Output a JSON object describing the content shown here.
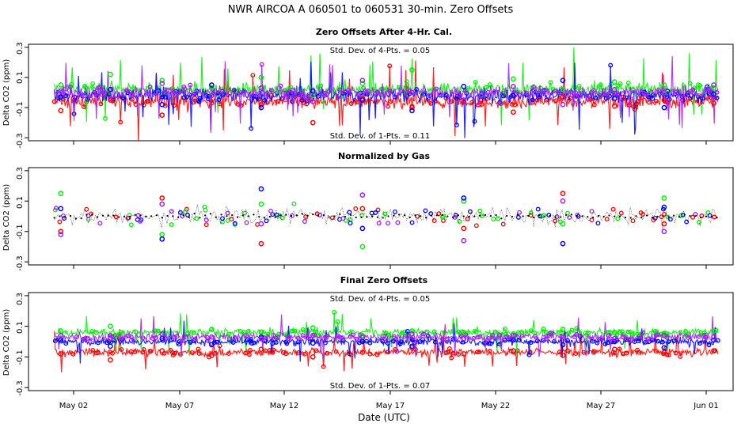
{
  "figure": {
    "title": "NWR   AIRCOA A   060501 to 060531   30-min. Zero Offsets",
    "xlabel": "Date (UTC)"
  },
  "colors": {
    "series": [
      "#ff0000",
      "#00ee00",
      "#0000ff",
      "#a020f0"
    ],
    "normalized": "#000000"
  },
  "chart_data": [
    {
      "type": "line",
      "title": "Zero Offsets After 4-Hr. Cal.",
      "ylabel": "Delta CO2 (ppm)",
      "ylim": [
        -0.32,
        0.32
      ],
      "yticks": [
        "-0.3",
        "-0.1",
        "0.1",
        "0.3"
      ],
      "xlim": [
        0.0,
        32.7
      ],
      "xticks": [
        "May 02",
        "May 07",
        "May 12",
        "May 17",
        "May 22",
        "May 27",
        "Jun 01"
      ],
      "annotations": [
        "Std. Dev. of 4-Pts. = 0.05",
        "Std. Dev. of 1-Pts. = 0.11"
      ],
      "series": [
        {
          "name": "red",
          "offset": -0.06,
          "x": [
            1.5,
            3.8,
            6.2,
            8.5,
            10.8,
            13.2,
            15.5,
            17.8,
            20.2,
            22.5,
            24.8,
            27.2,
            29.5,
            31.8
          ],
          "values": [
            -0.12,
            -0.05,
            -0.15,
            -0.02,
            -0.08,
            -0.2,
            -0.04,
            -0.1,
            -0.06,
            -0.13,
            -0.03,
            -0.09,
            -0.05,
            -0.07
          ]
        },
        {
          "name": "green",
          "offset": 0.02,
          "x": [
            1.5,
            3.8,
            6.2,
            8.5,
            10.8,
            13.2,
            15.5,
            17.8,
            20.2,
            22.5,
            24.8,
            27.2,
            29.5,
            31.8
          ],
          "values": [
            0.05,
            0.12,
            0.08,
            0.03,
            0.1,
            -0.02,
            0.06,
            0.15,
            0.04,
            0.09,
            0.02,
            0.07,
            0.05,
            0.03
          ]
        },
        {
          "name": "blue",
          "offset": -0.02,
          "x": [
            1.5,
            3.8,
            6.2,
            8.5,
            10.8,
            13.2,
            15.5,
            17.8,
            20.2,
            22.5,
            24.8,
            27.2,
            29.5,
            31.8
          ],
          "values": [
            -0.03,
            0.02,
            -0.08,
            0.05,
            -0.1,
            0.01,
            -0.05,
            -0.12,
            0.04,
            -0.02,
            0.08,
            -0.04,
            -0.1,
            -0.01
          ]
        },
        {
          "name": "purple",
          "offset": 0.0,
          "x": [
            1.5,
            3.8,
            6.2,
            8.5,
            10.8,
            13.2,
            15.5,
            17.8,
            20.2,
            22.5,
            24.8,
            27.2,
            29.5,
            31.8
          ],
          "values": [
            0.01,
            -0.04,
            0.06,
            -0.02,
            0.03,
            -0.06,
            0.08,
            0.0,
            -0.05,
            0.04,
            -0.08,
            0.02,
            0.0,
            0.05
          ]
        }
      ]
    },
    {
      "type": "scatter",
      "title": "Normalized by Gas",
      "ylabel": "Delta CO2 (ppm)",
      "ylim": [
        -0.32,
        0.32
      ],
      "yticks": [
        "-0.3",
        "-0.1",
        "0.1",
        "0.3"
      ],
      "xlim": [
        0.0,
        32.7
      ],
      "xticks": [
        "May 02",
        "May 07",
        "May 12",
        "May 17",
        "May 22",
        "May 27",
        "Jun 01"
      ],
      "annotations": [],
      "series": [
        {
          "name": "red",
          "offset": 0.0,
          "x": [
            1.5,
            6.2,
            10.8,
            15.5,
            20.2,
            24.8,
            29.5
          ],
          "values": [
            -0.1,
            0.12,
            -0.18,
            0.05,
            -0.08,
            0.15,
            -0.05
          ]
        },
        {
          "name": "green",
          "offset": 0.0,
          "x": [
            1.5,
            6.2,
            10.8,
            15.5,
            20.2,
            24.8,
            29.5
          ],
          "values": [
            0.15,
            -0.12,
            0.08,
            -0.2,
            0.1,
            -0.05,
            0.12
          ]
        },
        {
          "name": "blue",
          "offset": 0.0,
          "x": [
            1.5,
            6.2,
            10.8,
            15.5,
            20.2,
            24.8,
            29.5
          ],
          "values": [
            0.05,
            -0.15,
            0.18,
            -0.08,
            0.12,
            -0.18,
            0.06
          ]
        },
        {
          "name": "purple",
          "offset": 0.0,
          "x": [
            1.5,
            6.2,
            10.8,
            15.5,
            20.2,
            24.8,
            29.5
          ],
          "values": [
            -0.12,
            0.08,
            -0.05,
            0.14,
            -0.16,
            0.1,
            -0.1
          ]
        },
        {
          "name": "normalized",
          "offset": 0.0,
          "x": [
            1.5,
            6.2,
            10.8,
            15.5,
            20.2,
            24.8,
            29.5
          ],
          "values": [
            0.0,
            0.0,
            0.0,
            0.0,
            0.0,
            0.0,
            0.0
          ]
        }
      ]
    },
    {
      "type": "line",
      "title": "Final Zero Offsets",
      "ylabel": "Delta CO2 (ppm)",
      "ylim": [
        -0.32,
        0.32
      ],
      "yticks": [
        "-0.3",
        "-0.1",
        "0.1",
        "0.3"
      ],
      "xlim": [
        0.0,
        32.7
      ],
      "xticks": [
        "May 02",
        "May 07",
        "May 12",
        "May 17",
        "May 22",
        "May 27",
        "Jun 01"
      ],
      "annotations": [
        "Std. Dev. of 4-Pts. = 0.05",
        "Std. Dev. of 1-Pts. = 0.07"
      ],
      "series": [
        {
          "name": "red",
          "offset": -0.07,
          "x": [
            1.5,
            3.8,
            6.2,
            8.5,
            10.8,
            13.2,
            15.5,
            17.8,
            20.2,
            22.5,
            24.8,
            27.2,
            29.5,
            31.8
          ],
          "values": [
            -0.08,
            -0.12,
            -0.06,
            -0.09,
            -0.05,
            -0.1,
            -0.07,
            -0.04,
            -0.08,
            -0.06,
            -0.09,
            -0.05,
            -0.07,
            -0.06
          ]
        },
        {
          "name": "green",
          "offset": 0.06,
          "x": [
            1.5,
            3.8,
            6.2,
            8.5,
            10.8,
            13.2,
            15.5,
            17.8,
            20.2,
            22.5,
            24.8,
            27.2,
            29.5,
            31.8
          ],
          "values": [
            0.07,
            0.1,
            0.05,
            0.08,
            0.06,
            0.09,
            0.04,
            0.07,
            0.06,
            0.05,
            0.08,
            0.06,
            0.05,
            0.07
          ]
        },
        {
          "name": "blue",
          "offset": 0.0,
          "x": [
            1.5,
            3.8,
            6.2,
            8.5,
            10.8,
            13.2,
            15.5,
            17.8,
            20.2,
            22.5,
            24.8,
            27.2,
            29.5,
            31.8
          ],
          "values": [
            0.01,
            -0.03,
            0.02,
            -0.02,
            0.03,
            -0.01,
            0.0,
            -0.03,
            0.02,
            0.01,
            -0.02,
            0.0,
            -0.04,
            0.01
          ]
        },
        {
          "name": "purple",
          "offset": 0.03,
          "x": [
            1.5,
            3.8,
            6.2,
            8.5,
            10.8,
            13.2,
            15.5,
            17.8,
            20.2,
            22.5,
            24.8,
            27.2,
            29.5,
            31.8
          ],
          "values": [
            0.04,
            0.02,
            0.05,
            0.03,
            0.02,
            0.04,
            0.03,
            0.05,
            0.02,
            0.04,
            0.03,
            0.02,
            0.04,
            0.03
          ]
        }
      ]
    }
  ]
}
